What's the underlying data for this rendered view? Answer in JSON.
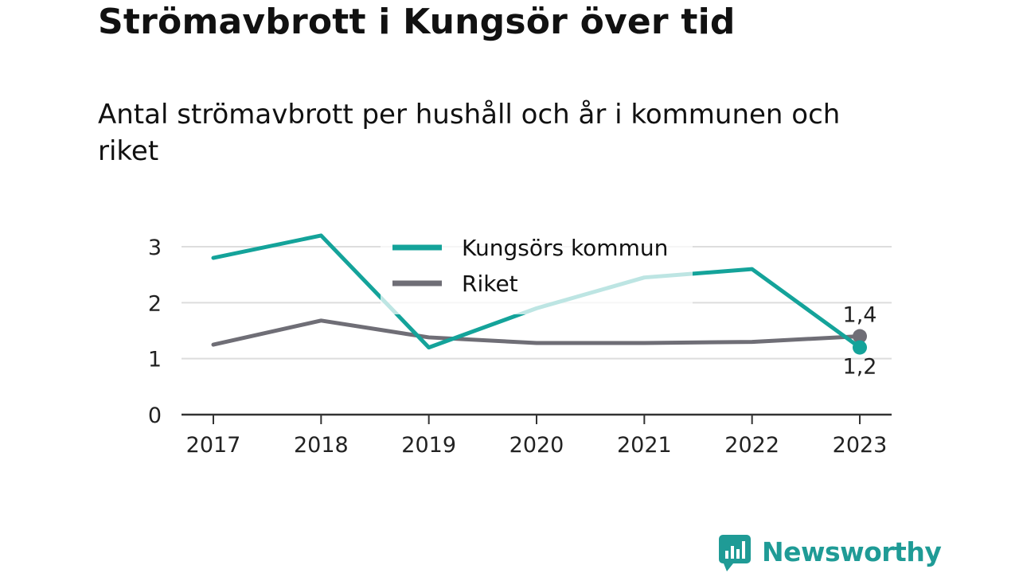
{
  "title": "Strömavbrott i Kungsör över tid",
  "subtitle": "Antal strömavbrott per hushåll och år i kommunen och riket",
  "brand": "Newsworthy",
  "colors": {
    "kungsor": "#14a39a",
    "riket": "#6f6e76",
    "grid": "#dddddd",
    "axis": "#333333",
    "brand": "#1f9b96"
  },
  "chart_data": {
    "type": "line",
    "x": [
      "2017",
      "2018",
      "2019",
      "2020",
      "2021",
      "2022",
      "2023"
    ],
    "ylim": [
      0,
      3
    ],
    "yticks": [
      "0",
      "1",
      "2",
      "3"
    ],
    "series": [
      {
        "name": "Kungsörs kommun",
        "values": [
          2.8,
          3.2,
          1.2,
          1.9,
          2.45,
          2.6,
          1.2
        ],
        "end_label": "1,2"
      },
      {
        "name": "Riket",
        "values": [
          1.25,
          1.68,
          1.38,
          1.28,
          1.28,
          1.3,
          1.4
        ],
        "end_label": "1,4"
      }
    ],
    "legend": "top-center",
    "grid": true
  }
}
